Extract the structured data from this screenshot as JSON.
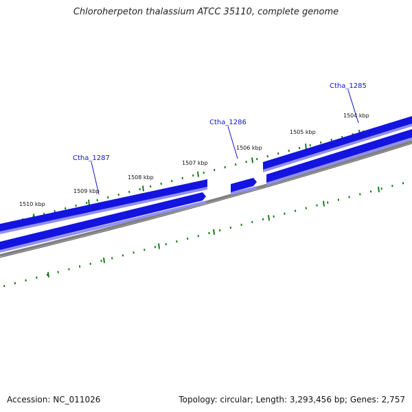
{
  "title": "Chloroherpeton thalassium ATCC 35110, complete genome",
  "accession_text": "Accession: NC_011026",
  "summary_text": "Topology: circular; Length: 3,293,456 bp; Genes: 2,757",
  "colors": {
    "gene_fill": "#1414e0",
    "gene_shadow": "#9090f0",
    "backbone": "#808080",
    "tick": "#1a7a1a",
    "gene_label": "#1010d0"
  },
  "scale_ticks": [
    {
      "kbp": 1504,
      "label": "1504 kbp"
    },
    {
      "kbp": 1505,
      "label": "1505 kbp"
    },
    {
      "kbp": 1506,
      "label": "1506 kbp"
    },
    {
      "kbp": 1507,
      "label": "1507 kbp"
    },
    {
      "kbp": 1508,
      "label": "1508 kbp"
    },
    {
      "kbp": 1509,
      "label": "1509 kbp"
    },
    {
      "kbp": 1510,
      "label": "1510 kbp"
    }
  ],
  "gene_labels": [
    {
      "id": "Ctha_1285",
      "label": "Ctha_1285"
    },
    {
      "id": "Ctha_1286",
      "label": "Ctha_1286"
    },
    {
      "id": "Ctha_1287",
      "label": "Ctha_1287"
    }
  ]
}
